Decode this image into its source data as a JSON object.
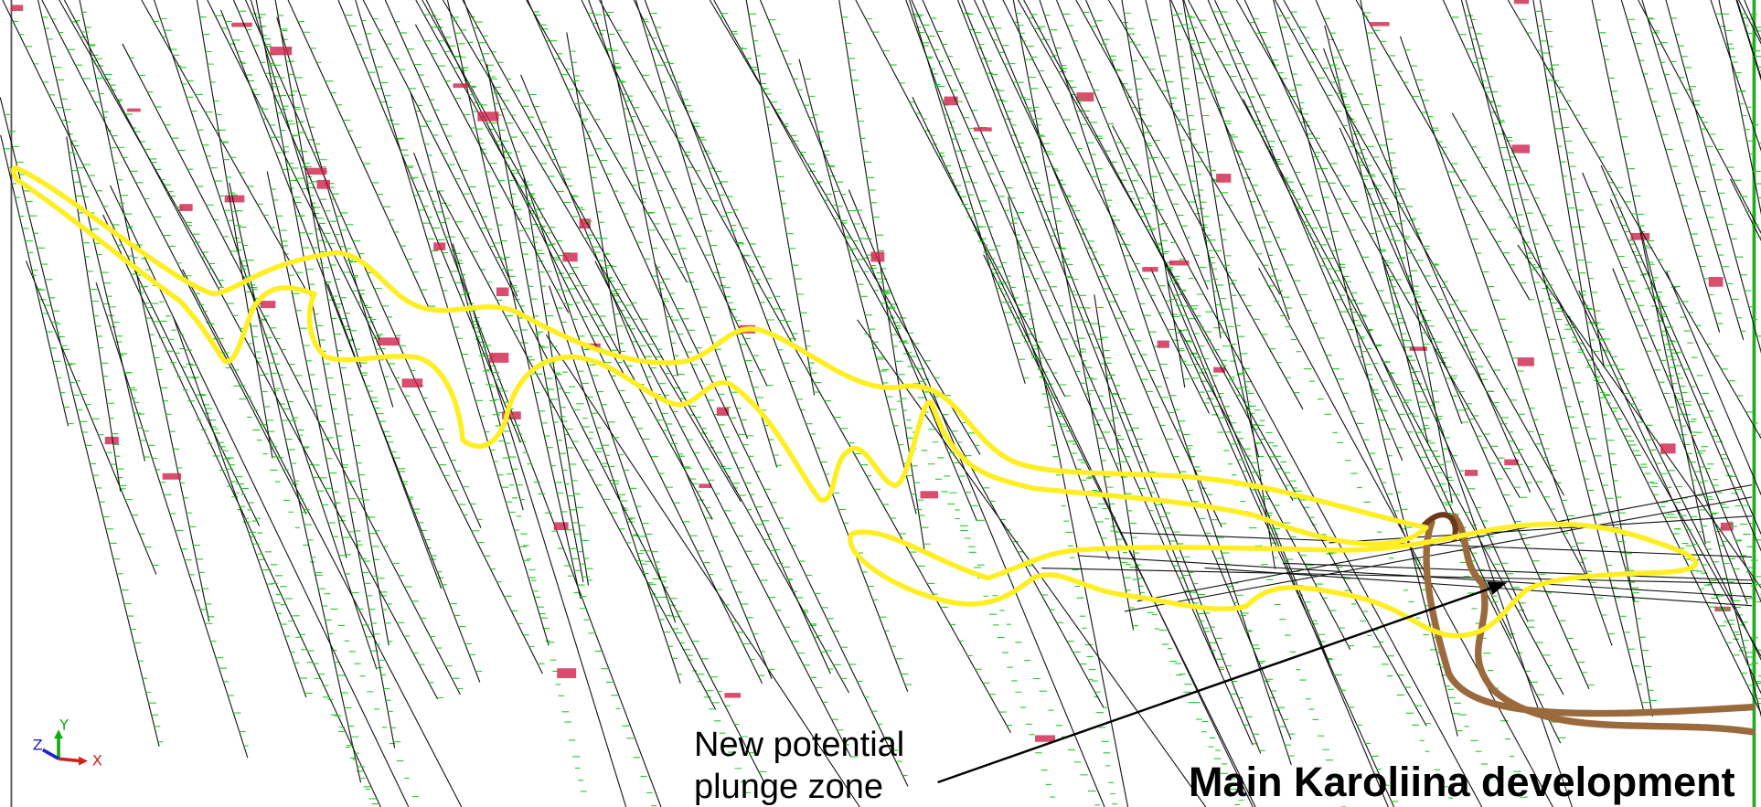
{
  "labels": {
    "plunge_zone": "New potential plunge zone",
    "main_development": "Main Karoliina development"
  },
  "axes": {
    "x": "X",
    "y": "Y",
    "z": "Z"
  }
}
